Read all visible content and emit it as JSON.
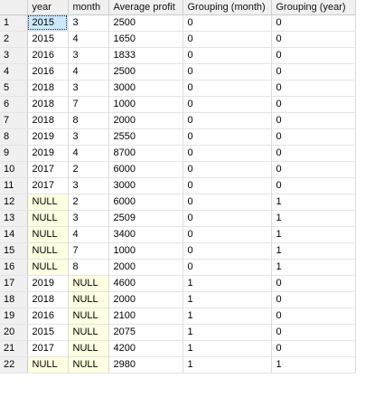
{
  "grid": {
    "columns": [
      "",
      "year",
      "month",
      "Average profit",
      "Grouping (month)",
      "Grouping (year)"
    ],
    "rows": [
      {
        "n": "1",
        "year": "2015",
        "month": "3",
        "avg": "2500",
        "gm": "0",
        "gy": "0"
      },
      {
        "n": "2",
        "year": "2015",
        "month": "4",
        "avg": "1650",
        "gm": "0",
        "gy": "0"
      },
      {
        "n": "3",
        "year": "2016",
        "month": "3",
        "avg": "1833",
        "gm": "0",
        "gy": "0"
      },
      {
        "n": "4",
        "year": "2016",
        "month": "4",
        "avg": "2500",
        "gm": "0",
        "gy": "0"
      },
      {
        "n": "5",
        "year": "2018",
        "month": "3",
        "avg": "3000",
        "gm": "0",
        "gy": "0"
      },
      {
        "n": "6",
        "year": "2018",
        "month": "7",
        "avg": "1000",
        "gm": "0",
        "gy": "0"
      },
      {
        "n": "7",
        "year": "2018",
        "month": "8",
        "avg": "2000",
        "gm": "0",
        "gy": "0"
      },
      {
        "n": "8",
        "year": "2019",
        "month": "3",
        "avg": "2550",
        "gm": "0",
        "gy": "0"
      },
      {
        "n": "9",
        "year": "2019",
        "month": "4",
        "avg": "8700",
        "gm": "0",
        "gy": "0"
      },
      {
        "n": "10",
        "year": "2017",
        "month": "2",
        "avg": "6000",
        "gm": "0",
        "gy": "0"
      },
      {
        "n": "11",
        "year": "2017",
        "month": "3",
        "avg": "3000",
        "gm": "0",
        "gy": "0"
      },
      {
        "n": "12",
        "year": "NULL",
        "month": "2",
        "avg": "6000",
        "gm": "0",
        "gy": "1"
      },
      {
        "n": "13",
        "year": "NULL",
        "month": "3",
        "avg": "2509",
        "gm": "0",
        "gy": "1"
      },
      {
        "n": "14",
        "year": "NULL",
        "month": "4",
        "avg": "3400",
        "gm": "0",
        "gy": "1"
      },
      {
        "n": "15",
        "year": "NULL",
        "month": "7",
        "avg": "1000",
        "gm": "0",
        "gy": "1"
      },
      {
        "n": "16",
        "year": "NULL",
        "month": "8",
        "avg": "2000",
        "gm": "0",
        "gy": "1"
      },
      {
        "n": "17",
        "year": "2019",
        "month": "NULL",
        "avg": "4600",
        "gm": "1",
        "gy": "0"
      },
      {
        "n": "18",
        "year": "2018",
        "month": "NULL",
        "avg": "2000",
        "gm": "1",
        "gy": "0"
      },
      {
        "n": "19",
        "year": "2016",
        "month": "NULL",
        "avg": "2100",
        "gm": "1",
        "gy": "0"
      },
      {
        "n": "20",
        "year": "2015",
        "month": "NULL",
        "avg": "2075",
        "gm": "1",
        "gy": "0"
      },
      {
        "n": "21",
        "year": "2017",
        "month": "NULL",
        "avg": "4200",
        "gm": "1",
        "gy": "0"
      },
      {
        "n": "22",
        "year": "NULL",
        "month": "NULL",
        "avg": "2980",
        "gm": "1",
        "gy": "1"
      }
    ],
    "selected_cell": {
      "row": 0,
      "column": "year"
    },
    "colors": {
      "header_bg": "#f0f0f0",
      "null_bg": "#ffffe1",
      "selected_bg": "#cce8ff",
      "gridline": "#dadcdd"
    }
  }
}
